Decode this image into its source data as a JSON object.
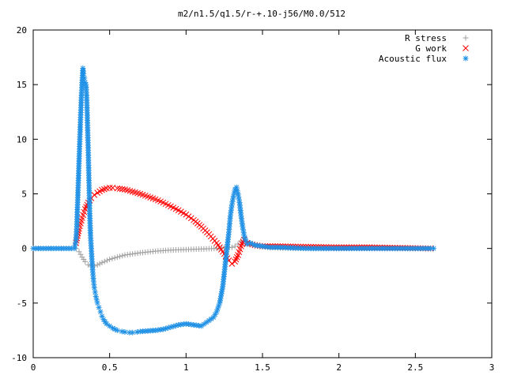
{
  "chart_data": {
    "type": "scatter",
    "title": "m2/n1.5/q1.5/r-+.10-j56/M0.0/512",
    "xlabel": "",
    "ylabel": "",
    "xlim": [
      0,
      3
    ],
    "ylim": [
      -10,
      20
    ],
    "x_ticks": [
      0,
      0.5,
      1,
      1.5,
      2,
      2.5,
      3
    ],
    "x_tick_labels": [
      "0",
      "0.5",
      "1",
      "1.5",
      "2",
      "2.5",
      "3"
    ],
    "y_ticks": [
      -10,
      -5,
      0,
      5,
      10,
      15,
      20
    ],
    "y_tick_labels": [
      "-10",
      "-5",
      "0",
      "5",
      "10",
      "15",
      "20"
    ],
    "grid": false,
    "legend_position": "top-right",
    "series": [
      {
        "name": "R stress",
        "marker": "plus",
        "color": "#a0a0a0",
        "x": [
          0.28,
          0.3,
          0.32,
          0.34,
          0.36,
          0.38,
          0.4,
          0.42,
          0.45,
          0.5,
          0.55,
          0.6,
          0.7,
          0.8,
          0.9,
          1.0,
          1.1,
          1.2,
          1.25,
          1.3,
          1.32,
          1.34,
          1.36,
          1.38,
          1.4,
          1.45,
          1.5,
          1.6,
          1.8,
          2.0,
          2.2,
          2.4,
          2.6
        ],
        "y": [
          0.0,
          -0.3,
          -0.8,
          -1.2,
          -1.5,
          -1.6,
          -1.6,
          -1.5,
          -1.3,
          -1.0,
          -0.8,
          -0.6,
          -0.4,
          -0.25,
          -0.15,
          -0.1,
          -0.05,
          0.0,
          0.05,
          0.1,
          0.2,
          0.4,
          0.7,
          1.0,
          0.6,
          0.3,
          0.15,
          0.05,
          0.0,
          0.0,
          0.0,
          0.0,
          0.0
        ]
      },
      {
        "name": "G work",
        "marker": "cross",
        "color": "#ff0000",
        "x": [
          0.28,
          0.3,
          0.32,
          0.34,
          0.36,
          0.38,
          0.4,
          0.42,
          0.45,
          0.48,
          0.5,
          0.52,
          0.55,
          0.6,
          0.65,
          0.7,
          0.75,
          0.8,
          0.85,
          0.9,
          0.95,
          1.0,
          1.05,
          1.1,
          1.15,
          1.2,
          1.25,
          1.28,
          1.3,
          1.32,
          1.34,
          1.36,
          1.38,
          1.4,
          1.45,
          1.5,
          1.6,
          1.8,
          2.0,
          2.2,
          2.4,
          2.6
        ],
        "y": [
          0.5,
          1.8,
          2.8,
          3.6,
          4.2,
          4.6,
          4.9,
          5.1,
          5.35,
          5.5,
          5.55,
          5.55,
          5.5,
          5.4,
          5.2,
          5.0,
          4.75,
          4.5,
          4.2,
          3.85,
          3.5,
          3.1,
          2.6,
          2.0,
          1.3,
          0.5,
          -0.5,
          -1.1,
          -1.4,
          -1.2,
          -0.6,
          0.2,
          0.8,
          0.5,
          0.3,
          0.2,
          0.2,
          0.15,
          0.1,
          0.1,
          0.05,
          0.0
        ]
      },
      {
        "name": "Acoustic flux",
        "marker": "star",
        "color": "#1e90e6",
        "x": [
          0.0,
          0.05,
          0.1,
          0.15,
          0.2,
          0.25,
          0.27,
          0.28,
          0.285,
          0.29,
          0.295,
          0.3,
          0.305,
          0.31,
          0.315,
          0.32,
          0.325,
          0.33,
          0.335,
          0.34,
          0.345,
          0.35,
          0.355,
          0.36,
          0.365,
          0.37,
          0.375,
          0.38,
          0.385,
          0.39,
          0.395,
          0.4,
          0.405,
          0.41,
          0.415,
          0.42,
          0.43,
          0.44,
          0.45,
          0.46,
          0.47,
          0.48,
          0.5,
          0.52,
          0.55,
          0.58,
          0.6,
          0.63,
          0.65,
          0.68,
          0.7,
          0.75,
          0.8,
          0.85,
          0.9,
          0.95,
          1.0,
          1.05,
          1.1,
          1.15,
          1.18,
          1.2,
          1.22,
          1.24,
          1.26,
          1.28,
          1.29,
          1.3,
          1.31,
          1.32,
          1.33,
          1.34,
          1.35,
          1.36,
          1.37,
          1.38,
          1.39,
          1.4,
          1.42,
          1.45,
          1.5,
          1.55,
          1.6,
          1.7,
          1.8,
          1.9,
          2.0,
          2.2,
          2.4,
          2.6,
          2.62
        ],
        "y": [
          0.0,
          0.0,
          0.0,
          0.0,
          0.0,
          0.0,
          0.0,
          0.8,
          2.0,
          4.0,
          6.0,
          8.0,
          10.0,
          12.0,
          13.8,
          15.2,
          16.5,
          16.0,
          15.6,
          15.2,
          15.0,
          13.8,
          11.5,
          9.0,
          6.0,
          3.2,
          1.2,
          0.0,
          -1.2,
          -2.2,
          -3.0,
          -3.6,
          -4.0,
          -4.4,
          -4.7,
          -5.0,
          -5.4,
          -5.8,
          -6.2,
          -6.5,
          -6.7,
          -6.9,
          -7.1,
          -7.3,
          -7.5,
          -7.6,
          -7.65,
          -7.7,
          -7.7,
          -7.65,
          -7.6,
          -7.55,
          -7.5,
          -7.4,
          -7.2,
          -7.0,
          -6.9,
          -7.0,
          -7.1,
          -6.6,
          -6.3,
          -5.8,
          -5.0,
          -3.5,
          -1.0,
          1.5,
          3.0,
          4.0,
          4.8,
          5.4,
          5.6,
          5.0,
          4.2,
          3.0,
          2.0,
          1.2,
          0.7,
          0.4,
          0.5,
          0.3,
          0.2,
          0.1,
          0.1,
          0.05,
          0.0,
          0.0,
          0.0,
          0.0,
          0.0,
          0.0,
          0.0
        ]
      }
    ]
  }
}
